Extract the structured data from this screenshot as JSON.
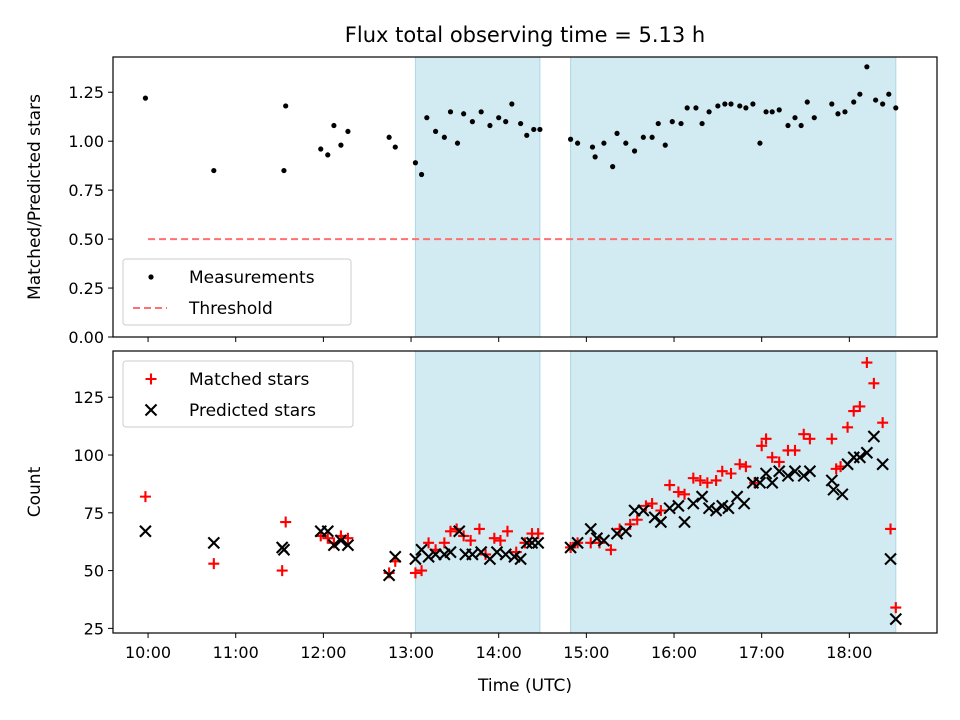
{
  "chart_data": {
    "title": "Flux total observing time = 5.13 h",
    "xlabel": "Time (UTC)",
    "xlim": [
      9.6,
      19.0
    ],
    "xticks": [
      {
        "value": 10,
        "label": "10:00"
      },
      {
        "value": 11,
        "label": "11:00"
      },
      {
        "value": 12,
        "label": "12:00"
      },
      {
        "value": 13,
        "label": "13:00"
      },
      {
        "value": 14,
        "label": "14:00"
      },
      {
        "value": 15,
        "label": "15:00"
      },
      {
        "value": 16,
        "label": "16:00"
      },
      {
        "value": 17,
        "label": "17:00"
      },
      {
        "value": 18,
        "label": "18:00"
      }
    ],
    "shaded_spans": [
      [
        13.05,
        14.47
      ],
      [
        14.82,
        18.53
      ]
    ],
    "shade_color": "#add8e6",
    "panels": [
      {
        "type": "scatter",
        "ylabel": "Matched/Predicted stars",
        "ylim": [
          0,
          1.43
        ],
        "yticks": [
          "0.00",
          "0.25",
          "0.50",
          "0.75",
          "1.00",
          "1.25"
        ],
        "legend": [
          {
            "label": "Measurements",
            "marker": "dot",
            "color": "#000000"
          },
          {
            "label": "Threshold",
            "marker": "dashed-line",
            "color": "#ff7070"
          }
        ],
        "threshold": {
          "value": 0.5,
          "from": 10.0,
          "to": 18.53,
          "color": "#ff7070"
        },
        "series": [
          {
            "name": "Measurements",
            "color": "#000000",
            "points": [
              [
                9.97,
                1.22
              ],
              [
                10.75,
                0.85
              ],
              [
                11.55,
                0.85
              ],
              [
                11.57,
                1.18
              ],
              [
                11.97,
                0.96
              ],
              [
                12.05,
                0.93
              ],
              [
                12.12,
                1.08
              ],
              [
                12.2,
                0.98
              ],
              [
                12.28,
                1.05
              ],
              [
                12.75,
                1.02
              ],
              [
                12.82,
                0.97
              ],
              [
                13.05,
                0.89
              ],
              [
                13.12,
                0.83
              ],
              [
                13.18,
                1.12
              ],
              [
                13.28,
                1.05
              ],
              [
                13.38,
                1.02
              ],
              [
                13.45,
                1.15
              ],
              [
                13.53,
                0.99
              ],
              [
                13.6,
                1.14
              ],
              [
                13.7,
                1.1
              ],
              [
                13.8,
                1.15
              ],
              [
                13.9,
                1.08
              ],
              [
                14.0,
                1.12
              ],
              [
                14.08,
                1.1
              ],
              [
                14.15,
                1.19
              ],
              [
                14.25,
                1.09
              ],
              [
                14.32,
                1.03
              ],
              [
                14.4,
                1.06
              ],
              [
                14.47,
                1.06
              ],
              [
                14.82,
                1.01
              ],
              [
                14.9,
                0.99
              ],
              [
                15.07,
                0.97
              ],
              [
                15.1,
                0.92
              ],
              [
                15.2,
                0.99
              ],
              [
                15.3,
                0.87
              ],
              [
                15.35,
                1.04
              ],
              [
                15.45,
                0.99
              ],
              [
                15.55,
                0.95
              ],
              [
                15.65,
                1.02
              ],
              [
                15.75,
                1.02
              ],
              [
                15.82,
                1.09
              ],
              [
                15.9,
                0.98
              ],
              [
                15.98,
                1.1
              ],
              [
                16.08,
                1.09
              ],
              [
                16.15,
                1.17
              ],
              [
                16.25,
                1.17
              ],
              [
                16.32,
                1.09
              ],
              [
                16.4,
                1.15
              ],
              [
                16.5,
                1.18
              ],
              [
                16.58,
                1.19
              ],
              [
                16.65,
                1.19
              ],
              [
                16.75,
                1.18
              ],
              [
                16.82,
                1.17
              ],
              [
                16.9,
                1.19
              ],
              [
                16.98,
                0.99
              ],
              [
                17.05,
                1.15
              ],
              [
                17.12,
                1.15
              ],
              [
                17.2,
                1.16
              ],
              [
                17.3,
                1.08
              ],
              [
                17.38,
                1.12
              ],
              [
                17.45,
                1.08
              ],
              [
                17.52,
                1.2
              ],
              [
                17.6,
                1.12
              ],
              [
                17.8,
                1.19
              ],
              [
                17.87,
                1.14
              ],
              [
                17.95,
                1.15
              ],
              [
                18.05,
                1.2
              ],
              [
                18.12,
                1.24
              ],
              [
                18.2,
                1.38
              ],
              [
                18.3,
                1.21
              ],
              [
                18.38,
                1.19
              ],
              [
                18.45,
                1.24
              ],
              [
                18.53,
                1.17
              ]
            ]
          }
        ]
      },
      {
        "type": "scatter",
        "ylabel": "Count",
        "ylim": [
          23,
          145
        ],
        "yticks": [
          "25",
          "50",
          "75",
          "100",
          "125"
        ],
        "legend": [
          {
            "label": "Matched stars",
            "marker": "plus",
            "color": "#ff0000"
          },
          {
            "label": "Predicted stars",
            "marker": "x",
            "color": "#000000"
          }
        ],
        "series": [
          {
            "name": "Matched stars",
            "marker": "plus",
            "color": "#ff0000",
            "points": [
              [
                9.97,
                82
              ],
              [
                10.75,
                53
              ],
              [
                11.53,
                50
              ],
              [
                11.57,
                71
              ],
              [
                11.97,
                65
              ],
              [
                12.05,
                64
              ],
              [
                12.12,
                62
              ],
              [
                12.2,
                65
              ],
              [
                12.28,
                64
              ],
              [
                12.75,
                49
              ],
              [
                12.82,
                54
              ],
              [
                13.05,
                49
              ],
              [
                13.12,
                50
              ],
              [
                13.2,
                62
              ],
              [
                13.28,
                59
              ],
              [
                13.38,
                62
              ],
              [
                13.45,
                67
              ],
              [
                13.52,
                68
              ],
              [
                13.6,
                65
              ],
              [
                13.68,
                63
              ],
              [
                13.78,
                68
              ],
              [
                13.85,
                57
              ],
              [
                13.95,
                64
              ],
              [
                14.02,
                63
              ],
              [
                14.1,
                67
              ],
              [
                14.2,
                58
              ],
              [
                14.3,
                62
              ],
              [
                14.38,
                66
              ],
              [
                14.45,
                66
              ],
              [
                14.82,
                60
              ],
              [
                14.9,
                62
              ],
              [
                15.05,
                62
              ],
              [
                15.15,
                62
              ],
              [
                15.28,
                59
              ],
              [
                15.38,
                68
              ],
              [
                15.5,
                70
              ],
              [
                15.58,
                72
              ],
              [
                15.68,
                78
              ],
              [
                15.75,
                79
              ],
              [
                15.85,
                76
              ],
              [
                15.95,
                87
              ],
              [
                16.05,
                84
              ],
              [
                16.12,
                83
              ],
              [
                16.22,
                90
              ],
              [
                16.3,
                89
              ],
              [
                16.38,
                88
              ],
              [
                16.48,
                89
              ],
              [
                16.55,
                93
              ],
              [
                16.65,
                92
              ],
              [
                16.75,
                96
              ],
              [
                16.82,
                95
              ],
              [
                16.92,
                88
              ],
              [
                17.0,
                104
              ],
              [
                17.05,
                107
              ],
              [
                17.12,
                99
              ],
              [
                17.2,
                97
              ],
              [
                17.3,
                102
              ],
              [
                17.38,
                102
              ],
              [
                17.48,
                109
              ],
              [
                17.55,
                107
              ],
              [
                17.8,
                107
              ],
              [
                17.85,
                94
              ],
              [
                17.9,
                95
              ],
              [
                17.98,
                112
              ],
              [
                18.05,
                119
              ],
              [
                18.12,
                121
              ],
              [
                18.2,
                140
              ],
              [
                18.28,
                131
              ],
              [
                18.38,
                114
              ],
              [
                18.47,
                68
              ],
              [
                18.53,
                34
              ]
            ]
          },
          {
            "name": "Predicted stars",
            "marker": "x",
            "color": "#000000",
            "points": [
              [
                9.97,
                67
              ],
              [
                10.75,
                62
              ],
              [
                11.53,
                60
              ],
              [
                11.55,
                59
              ],
              [
                11.97,
                67
              ],
              [
                12.05,
                67
              ],
              [
                12.12,
                61
              ],
              [
                12.2,
                63
              ],
              [
                12.28,
                61
              ],
              [
                12.75,
                48
              ],
              [
                12.82,
                56
              ],
              [
                13.05,
                55
              ],
              [
                13.12,
                59
              ],
              [
                13.2,
                56
              ],
              [
                13.28,
                57
              ],
              [
                13.38,
                57
              ],
              [
                13.45,
                58
              ],
              [
                13.55,
                67
              ],
              [
                13.62,
                57
              ],
              [
                13.7,
                57
              ],
              [
                13.8,
                58
              ],
              [
                13.9,
                55
              ],
              [
                13.98,
                58
              ],
              [
                14.08,
                57
              ],
              [
                14.18,
                56
              ],
              [
                14.25,
                55
              ],
              [
                14.32,
                62
              ],
              [
                14.38,
                62
              ],
              [
                14.45,
                62
              ],
              [
                14.82,
                60
              ],
              [
                14.9,
                62
              ],
              [
                15.05,
                68
              ],
              [
                15.12,
                64
              ],
              [
                15.2,
                63
              ],
              [
                15.35,
                66
              ],
              [
                15.45,
                67
              ],
              [
                15.55,
                76
              ],
              [
                15.65,
                76
              ],
              [
                15.78,
                73
              ],
              [
                15.85,
                71
              ],
              [
                15.95,
                77
              ],
              [
                16.05,
                78
              ],
              [
                16.12,
                71
              ],
              [
                16.22,
                79
              ],
              [
                16.32,
                82
              ],
              [
                16.4,
                77
              ],
              [
                16.48,
                76
              ],
              [
                16.55,
                78
              ],
              [
                16.62,
                77
              ],
              [
                16.72,
                82
              ],
              [
                16.8,
                79
              ],
              [
                16.9,
                88
              ],
              [
                16.98,
                88
              ],
              [
                17.05,
                92
              ],
              [
                17.12,
                88
              ],
              [
                17.2,
                93
              ],
              [
                17.3,
                91
              ],
              [
                17.38,
                93
              ],
              [
                17.48,
                91
              ],
              [
                17.55,
                93
              ],
              [
                17.8,
                89
              ],
              [
                17.82,
                85
              ],
              [
                17.92,
                83
              ],
              [
                17.98,
                96
              ],
              [
                18.05,
                99
              ],
              [
                18.12,
                99
              ],
              [
                18.2,
                101
              ],
              [
                18.28,
                108
              ],
              [
                18.38,
                96
              ],
              [
                18.47,
                55
              ],
              [
                18.53,
                29
              ]
            ]
          }
        ]
      }
    ]
  }
}
